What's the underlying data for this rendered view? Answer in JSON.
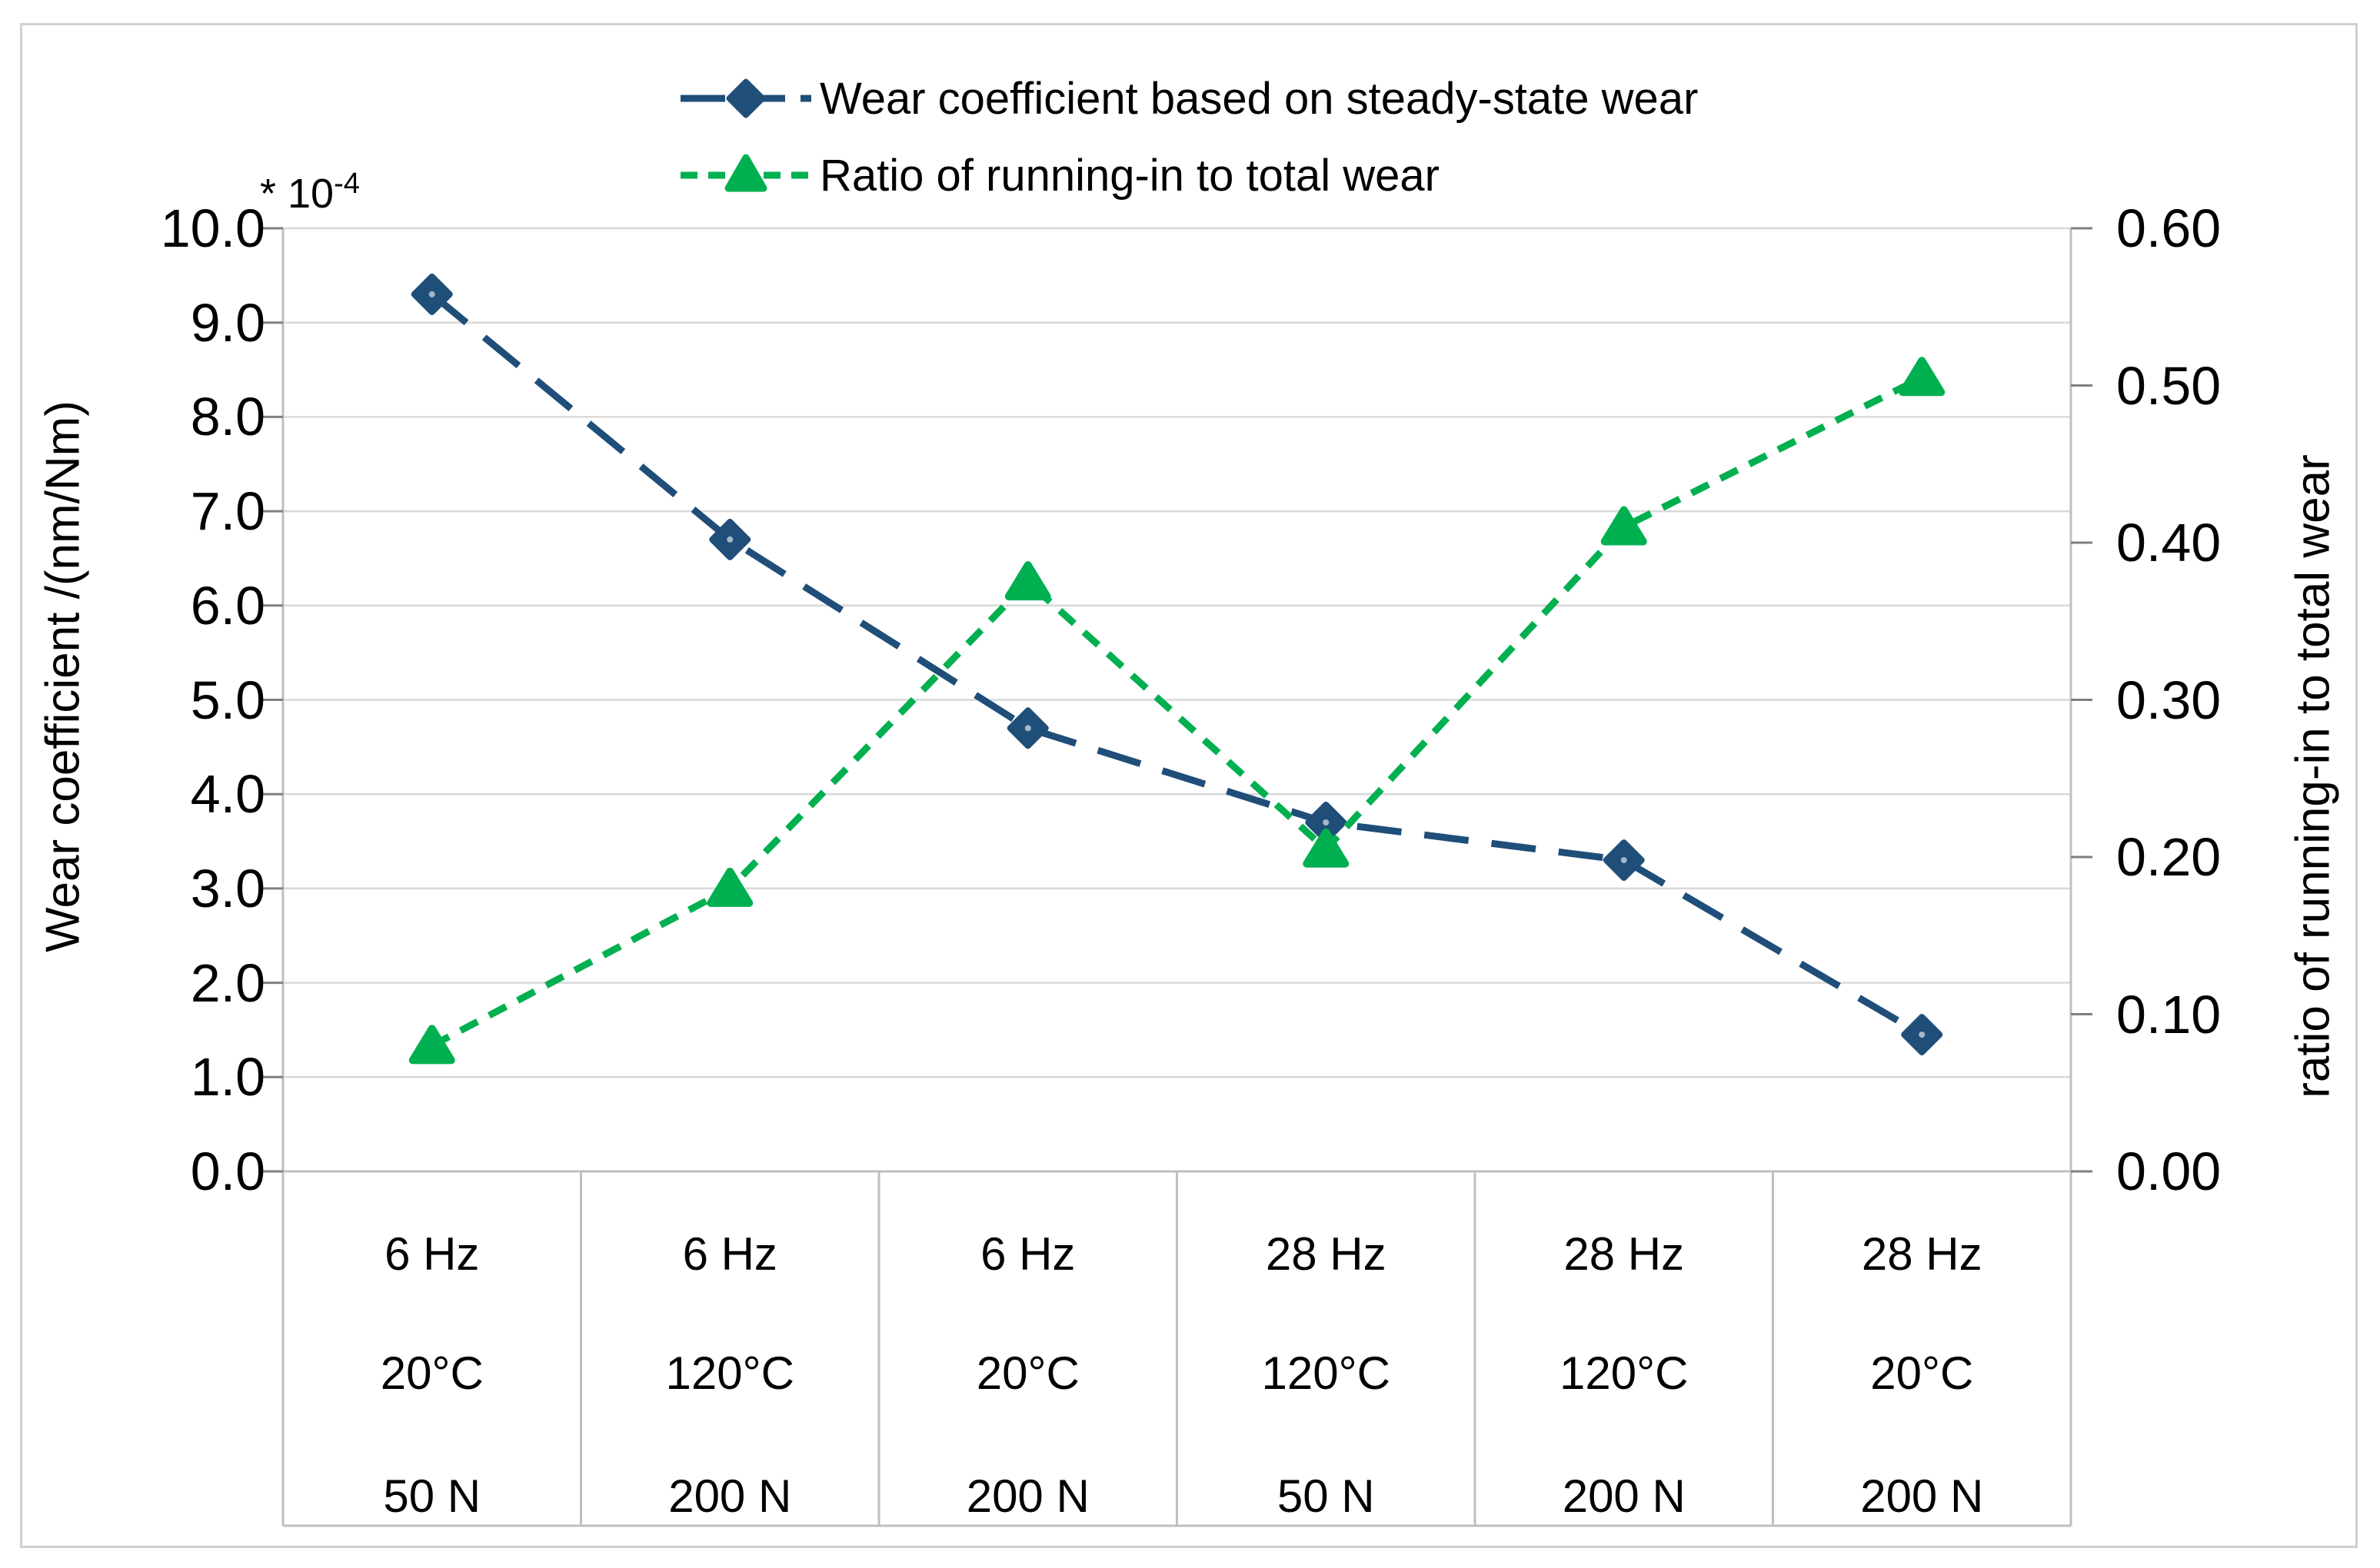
{
  "chart_data": {
    "type": "line",
    "title": "",
    "grid": true,
    "legend_position": "top-center",
    "x_categories": [
      {
        "frequency": "6 Hz",
        "temperature": "20°C",
        "load": "50 N"
      },
      {
        "frequency": "6 Hz",
        "temperature": "120°C",
        "load": "200 N"
      },
      {
        "frequency": "6 Hz",
        "temperature": "20°C",
        "load": "200 N"
      },
      {
        "frequency": "28 Hz",
        "temperature": "120°C",
        "load": "50 N"
      },
      {
        "frequency": "28 Hz",
        "temperature": "120°C",
        "load": "200 N"
      },
      {
        "frequency": "28 Hz",
        "temperature": "20°C",
        "load": "200 N"
      }
    ],
    "y_axis_left": {
      "label": "Wear coefficient /(nm/Nm)",
      "scale_note": "* 10-4",
      "min": 0.0,
      "max": 10.0,
      "step": 1.0,
      "tick_labels": [
        "10.0",
        "9.0",
        "8.0",
        "7.0",
        "6.0",
        "5.0",
        "4.0",
        "3.0",
        "2.0",
        "1.0",
        "0.0"
      ]
    },
    "y_axis_right": {
      "label": "ratio of running-in to total wear",
      "min": 0.0,
      "max": 0.6,
      "step": 0.1,
      "tick_labels": [
        "0.60",
        "0.50",
        "0.40",
        "0.30",
        "0.20",
        "0.10",
        "0.00"
      ]
    },
    "series": [
      {
        "name": "Wear coefficient based on steady-state wear",
        "axis": "left",
        "color": "#1F4E79",
        "marker": "diamond",
        "line_style": "long-dash",
        "values": [
          9.3,
          6.7,
          4.7,
          3.7,
          3.3,
          1.45
        ]
      },
      {
        "name": "Ratio of running-in to total wear",
        "axis": "right",
        "color": "#00B050",
        "marker": "triangle",
        "line_style": "short-dash",
        "values": [
          0.08,
          0.18,
          0.375,
          0.205,
          0.41,
          0.505
        ]
      }
    ]
  },
  "scale_note": {
    "prefix": "* 10",
    "exponent": "-4"
  },
  "colors": {
    "gridline": "#D9D9D9",
    "axis_line": "#BFBFBF",
    "tick_mark": "#7F7F7F",
    "text": "#000000",
    "background": "#FFFFFF"
  }
}
